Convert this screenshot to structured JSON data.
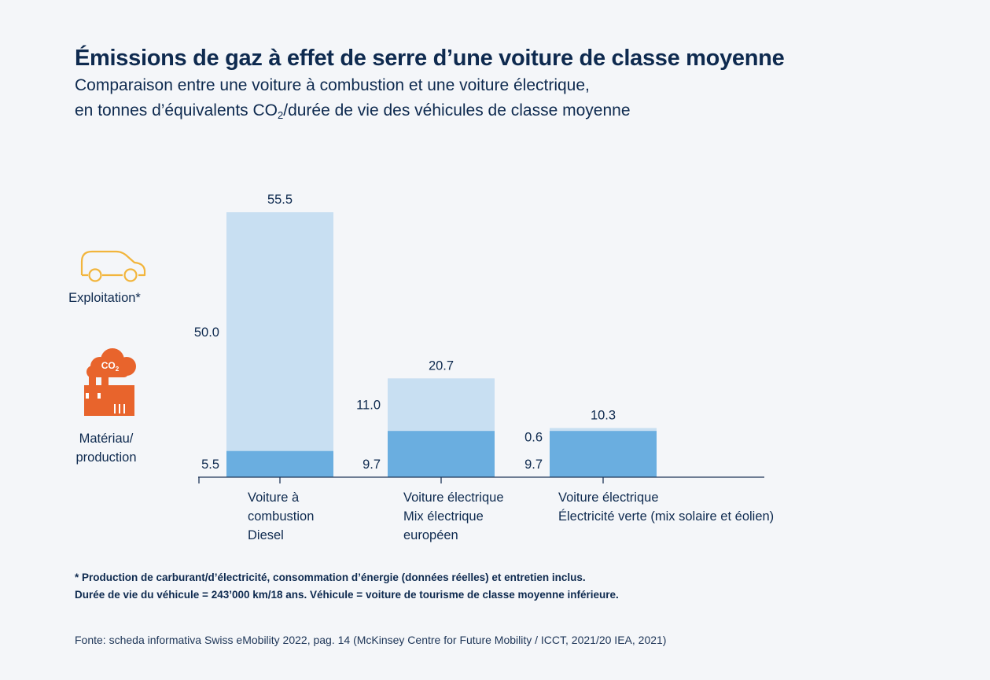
{
  "title": "Émissions de gaz à effet de serre d’une voiture de classe moyenne",
  "subtitle": {
    "line1": "Comparaison entre une voiture à combustion et une voiture électrique,",
    "line2_before": "en tonnes d’équivalents CO",
    "line2_sub": "2",
    "line2_after": "/durée de vie des véhicules de classe moyenne"
  },
  "legend": {
    "operation": "Exploitation*",
    "material": "Matériau/\nproduction",
    "co2_icon_text": "CO2"
  },
  "colors": {
    "operation": "#c8dff2",
    "material": "#6aaee0",
    "axis": "#1d3557",
    "text": "#0e2a4f",
    "car_icon": "#f2b53c",
    "factory_icon": "#e8642c"
  },
  "chart_data": {
    "type": "bar",
    "stacked": true,
    "categories": [
      "Voiture à\ncombustion\nDiesel",
      "Voiture électrique\nMix électrique\neuropéen",
      "Voiture électrique\nÉlectricité verte (mix solaire et éolien)"
    ],
    "series": [
      {
        "name": "Matériau/production",
        "values": [
          5.5,
          9.7,
          9.7
        ]
      },
      {
        "name": "Exploitation*",
        "values": [
          50.0,
          11.0,
          0.6
        ]
      }
    ],
    "segment_labels": {
      "material": [
        "5.5",
        "9.7",
        "9.7"
      ],
      "operation": [
        "50.0",
        "11.0",
        "0.6"
      ]
    },
    "totals": [
      55.5,
      20.7,
      10.3
    ],
    "total_labels": [
      "55.5",
      "20.7",
      "10.3"
    ],
    "ylim": [
      0,
      55.5
    ]
  },
  "footnote": {
    "line1": "* Production de carburant/d’électricité, consommation d’énergie (données réelles) et entretien inclus.",
    "line2": "Durée de vie du véhicule = 243’000 km/18 ans. Véhicule = voiture de tourisme de classe moyenne inférieure."
  },
  "source": "Fonte: scheda informativa Swiss eMobility 2022, pag. 14 (McKinsey Centre for Future Mobility / ICCT, 2021/20 IEA, 2021)"
}
